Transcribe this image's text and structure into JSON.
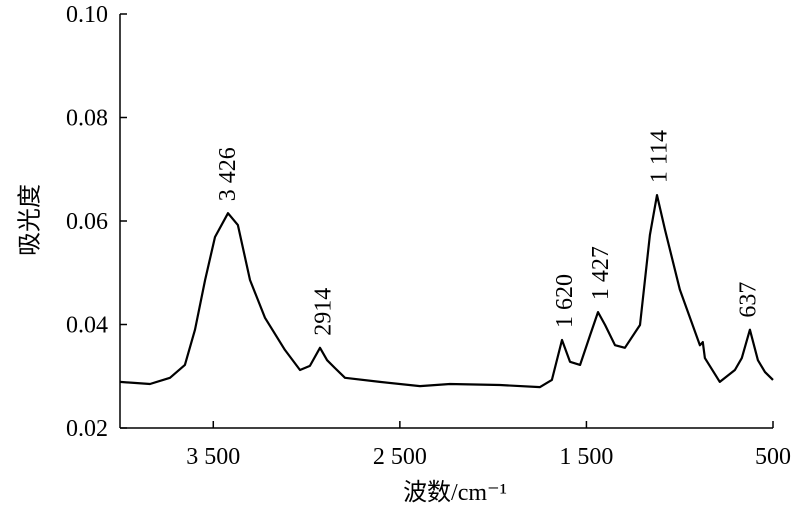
{
  "chart_data": {
    "type": "line",
    "x_label": "波数/cm⁻¹",
    "y_label": "吸光度",
    "xlim": [
      4000,
      500
    ],
    "ylim": [
      0.02,
      0.1
    ],
    "xticks": [
      {
        "value": 3500,
        "label": "3 500"
      },
      {
        "value": 2500,
        "label": "2 500"
      },
      {
        "value": 1500,
        "label": "1 500"
      },
      500
    ],
    "yticks": [
      0.02,
      0.04,
      0.06,
      0.08,
      {
        "value": 0.1,
        "label": "0.10"
      }
    ],
    "color": "#000000",
    "x": [
      4000,
      3839,
      3732,
      3652,
      3598,
      3544,
      3491,
      3421,
      3368,
      3303,
      3223,
      3116,
      3035,
      2982,
      2928,
      2890,
      2848,
      2794,
      2607,
      2392,
      2232,
      1964,
      1749,
      1685,
      1631,
      1588,
      1534,
      1480,
      1438,
      1400,
      1347,
      1294,
      1213,
      1160,
      1122,
      1079,
      999,
      892,
      876,
      865,
      785,
      704,
      667,
      624,
      581,
      543,
      500
    ],
    "values": [
      0.0289,
      0.0285,
      0.0297,
      0.0322,
      0.039,
      0.0486,
      0.0569,
      0.0615,
      0.0592,
      0.0486,
      0.0413,
      0.0351,
      0.0312,
      0.032,
      0.0355,
      0.0331,
      0.0316,
      0.0297,
      0.0289,
      0.0281,
      0.0285,
      0.0283,
      0.0279,
      0.0293,
      0.037,
      0.0328,
      0.0322,
      0.038,
      0.0424,
      0.0399,
      0.036,
      0.0355,
      0.0399,
      0.0573,
      0.065,
      0.0583,
      0.0467,
      0.036,
      0.0366,
      0.0335,
      0.0289,
      0.0312,
      0.0335,
      0.039,
      0.0331,
      0.0308,
      0.0293
    ],
    "annotations": [
      {
        "label": "3 426",
        "x": 3426,
        "y": 0.0615
      },
      {
        "label": "2914",
        "x": 2914,
        "y": 0.0355
      },
      {
        "label": "1 620",
        "x": 1620,
        "y": 0.037
      },
      {
        "label": "1 427",
        "x": 1427,
        "y": 0.0424
      },
      {
        "label": "1 114",
        "x": 1114,
        "y": 0.065
      },
      {
        "label": "637",
        "x": 637,
        "y": 0.039
      }
    ]
  }
}
